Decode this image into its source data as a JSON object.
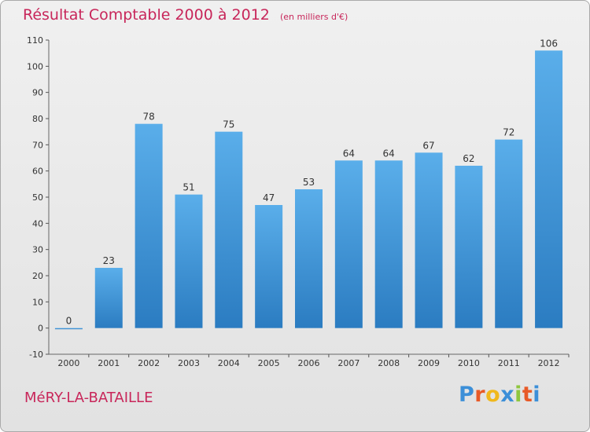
{
  "header": {
    "title": "Résultat Comptable 2000 à 2012",
    "unit": "(en milliers d'€)"
  },
  "footer": {
    "commune": "MéRY-LA-BATAILLE",
    "logo_letters": [
      "P",
      "r",
      "o",
      "x",
      "i",
      "t",
      "i"
    ],
    "logo_colors": [
      "#3c8fd8",
      "#e85a27",
      "#f0b81c",
      "#3c8fd8",
      "#8ec63f",
      "#e85a27",
      "#3c8fd8"
    ]
  },
  "colors": {
    "title": "#c8265a",
    "bar_top": "#5aaeea",
    "bar_bottom": "#2b7cc1",
    "axis": "#666666",
    "grid_tick": "#555555"
  },
  "chart_data": {
    "type": "bar",
    "title": "Résultat Comptable 2000 à 2012",
    "subtitle": "(en milliers d'€)",
    "xlabel": "",
    "ylabel": "",
    "categories": [
      "2000",
      "2001",
      "2002",
      "2003",
      "2004",
      "2005",
      "2006",
      "2007",
      "2008",
      "2009",
      "2010",
      "2011",
      "2012"
    ],
    "values": [
      0,
      23,
      78,
      51,
      75,
      47,
      53,
      64,
      64,
      67,
      62,
      72,
      106
    ],
    "ylim": [
      -10,
      110
    ],
    "yticks": [
      -10,
      0,
      10,
      20,
      30,
      40,
      50,
      60,
      70,
      80,
      90,
      100,
      110
    ],
    "grid": false
  }
}
